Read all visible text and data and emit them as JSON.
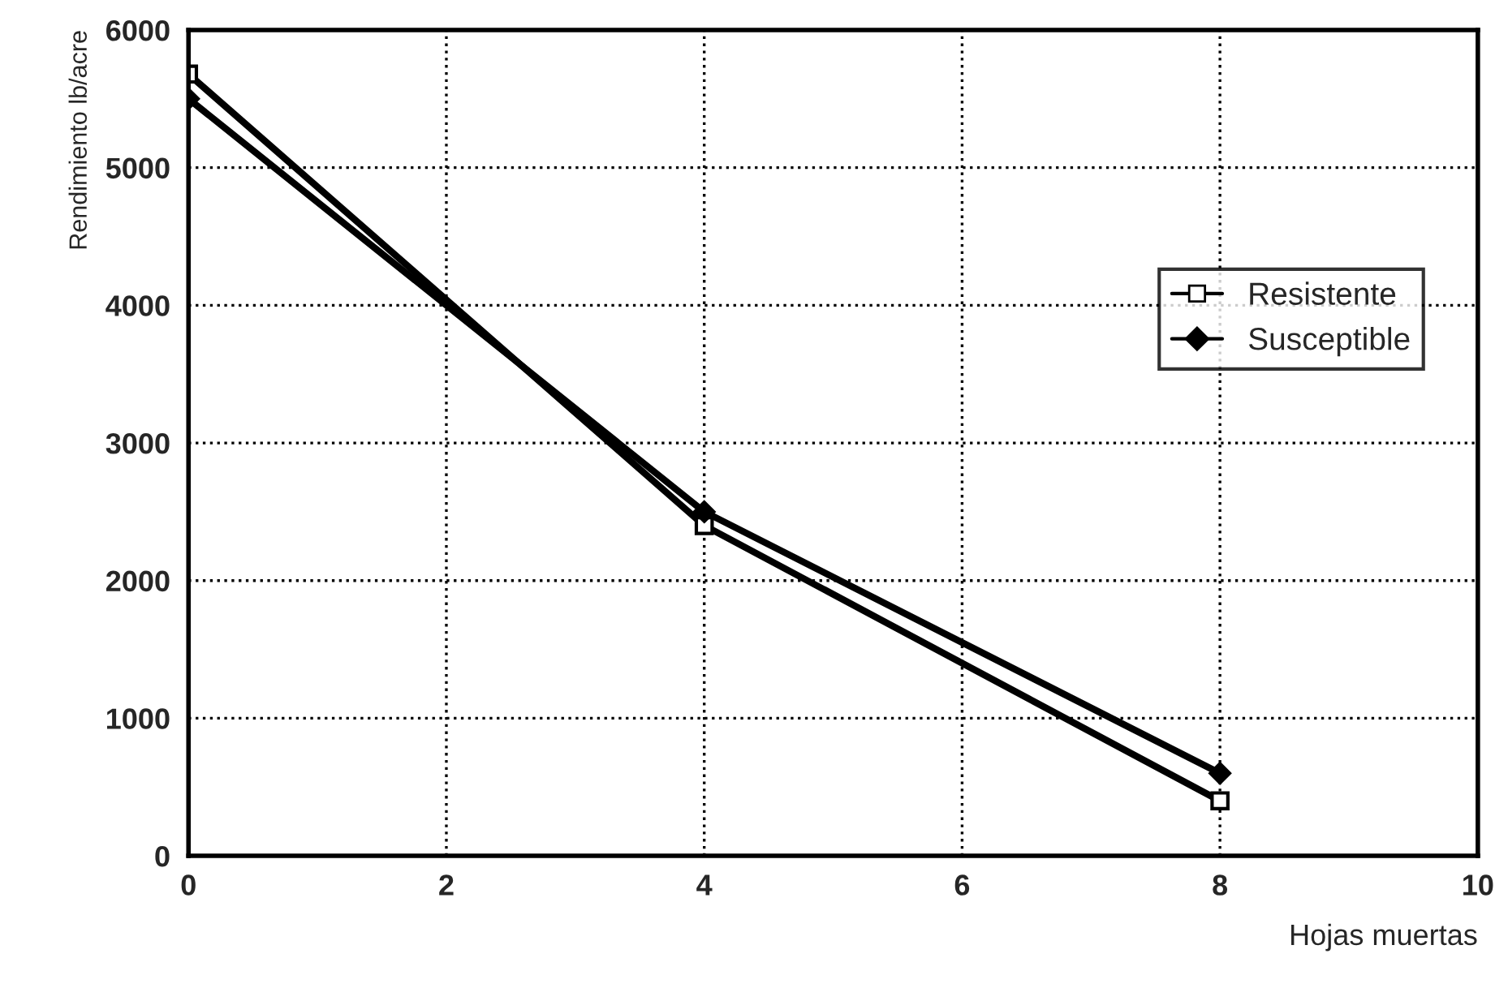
{
  "chart_data": {
    "type": "line",
    "xlabel": "Hojas muertas",
    "ylabel": "Rendimiento lb/acre",
    "x": [
      0,
      4,
      8
    ],
    "series": [
      {
        "name": "Resistente",
        "color": "#000000",
        "marker": "square",
        "values": [
          5680,
          2400,
          400
        ]
      },
      {
        "name": "Susceptible",
        "color": "#000000",
        "marker": "diamond",
        "values": [
          5500,
          2500,
          600
        ]
      }
    ],
    "xlim": [
      0,
      10
    ],
    "xticks": [
      0,
      2,
      4,
      6,
      8,
      10
    ],
    "ylim": [
      0,
      6000
    ],
    "yticks": [
      0,
      1000,
      2000,
      3000,
      4000,
      5000,
      6000
    ],
    "grid": true,
    "legend": "right",
    "line_style": "solid"
  }
}
